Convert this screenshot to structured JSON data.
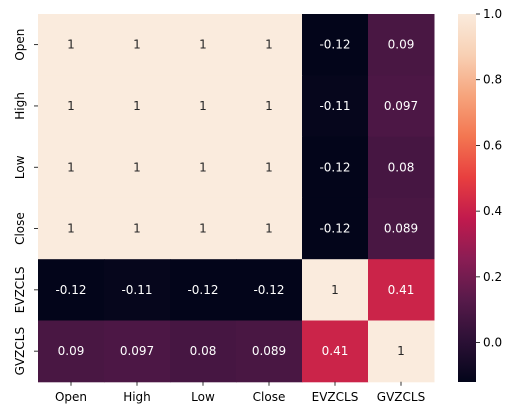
{
  "chart_data": {
    "type": "heatmap",
    "title": "",
    "xlabel": "",
    "ylabel": "",
    "x_categories": [
      "Open",
      "High",
      "Low",
      "Close",
      "EVZCLS",
      "GVZCLS"
    ],
    "y_categories": [
      "Open",
      "High",
      "Low",
      "Close",
      "EVZCLS",
      "GVZCLS"
    ],
    "values": [
      [
        1,
        1,
        1,
        1,
        -0.12,
        0.09
      ],
      [
        1,
        1,
        1,
        1,
        -0.11,
        0.097
      ],
      [
        1,
        1,
        1,
        1,
        -0.12,
        0.08
      ],
      [
        1,
        1,
        1,
        1,
        -0.12,
        0.089
      ],
      [
        -0.12,
        -0.11,
        -0.12,
        -0.12,
        1,
        0.41
      ],
      [
        0.09,
        0.097,
        0.08,
        0.089,
        0.41,
        1
      ]
    ],
    "annotations": [
      [
        "1",
        "1",
        "1",
        "1",
        "-0.12",
        "0.09"
      ],
      [
        "1",
        "1",
        "1",
        "1",
        "-0.11",
        "0.097"
      ],
      [
        "1",
        "1",
        "1",
        "1",
        "-0.12",
        "0.08"
      ],
      [
        "1",
        "1",
        "1",
        "1",
        "-0.12",
        "0.089"
      ],
      [
        "-0.12",
        "-0.11",
        "-0.12",
        "-0.12",
        "1",
        "0.41"
      ],
      [
        "0.09",
        "0.097",
        "0.08",
        "0.089",
        "0.41",
        "1"
      ]
    ],
    "colorbar": {
      "range": [
        -0.12,
        1.0
      ],
      "ticks": [
        0.0,
        0.2,
        0.4,
        0.6,
        0.8,
        1.0
      ],
      "tick_labels": [
        "0.0",
        "0.2",
        "0.4",
        "0.6",
        "0.8",
        "1.0"
      ]
    },
    "colormap": "rocket",
    "colormap_stops": [
      "#03051a",
      "#2b1035",
      "#571a4a",
      "#8a1d54",
      "#c11a4d",
      "#e83f3f",
      "#f37651",
      "#f6a47c",
      "#f8d0b4",
      "#faebdd"
    ],
    "grid": false
  }
}
